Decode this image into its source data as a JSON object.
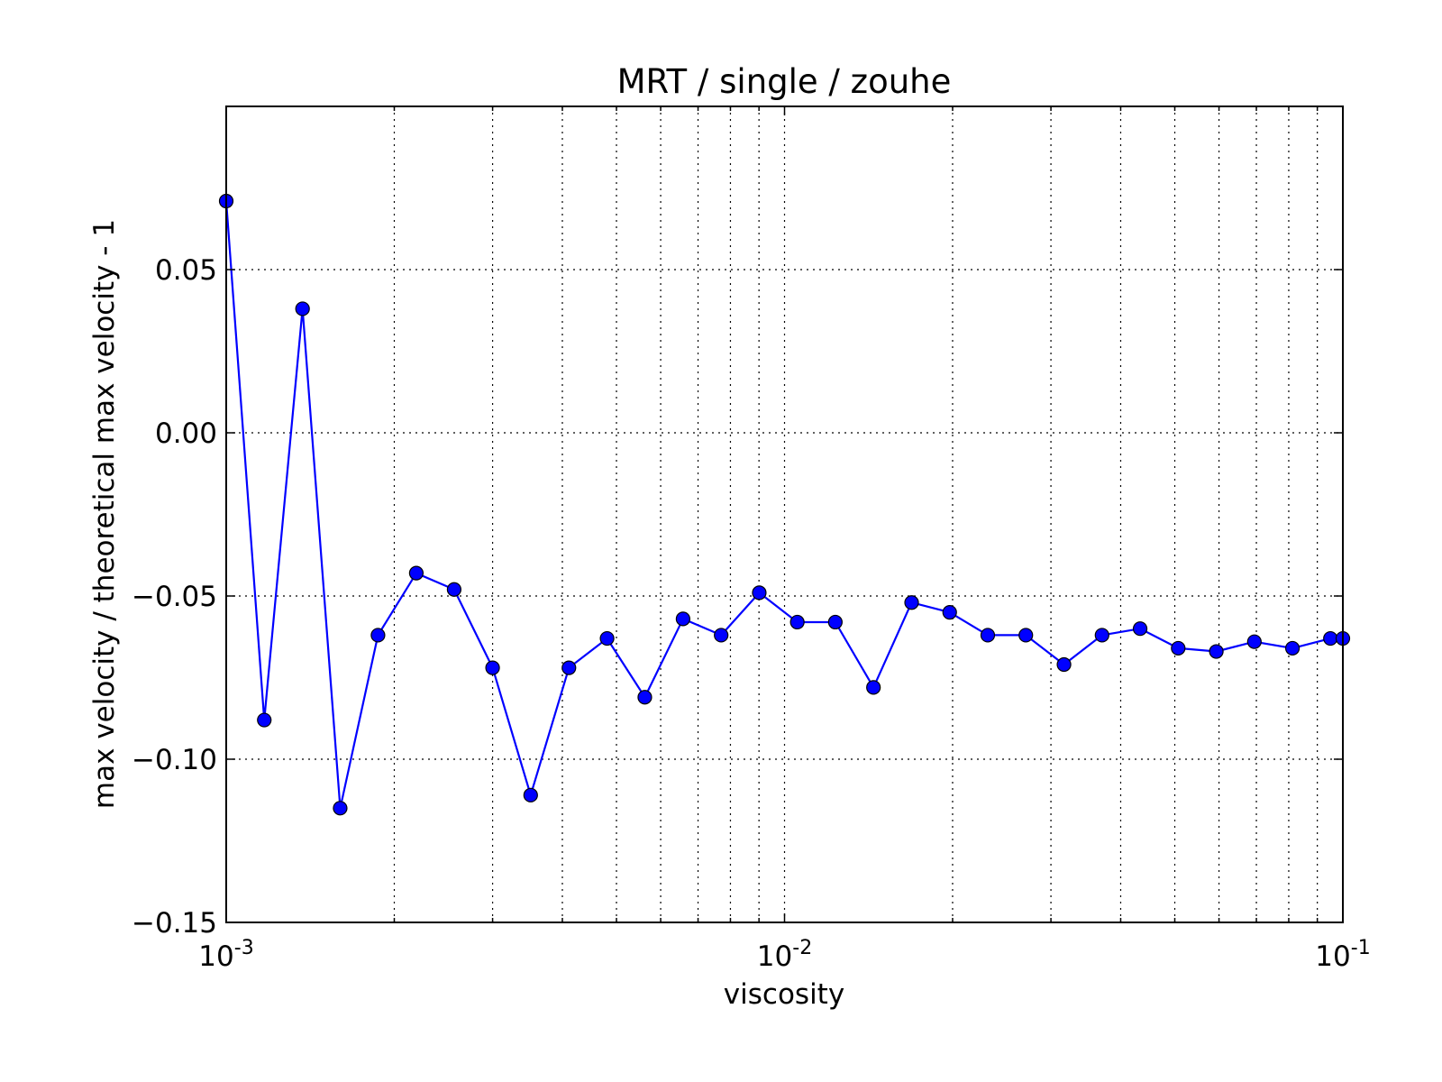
{
  "colors": {
    "line": "#0000ff",
    "marker": "#0000ff",
    "marker_edge": "#000000",
    "axes": "#000000",
    "grid": "#000000",
    "background": "#ffffff"
  },
  "chart_data": {
    "type": "line",
    "title": "MRT / single / zouhe",
    "xlabel": "viscosity",
    "ylabel": "max velocity / theoretical max velocity - 1",
    "x_scale": "log",
    "xlim": [
      0.001,
      0.1
    ],
    "ylim": [
      -0.15,
      0.1
    ],
    "grid": true,
    "grid_style": "dotted",
    "legend": "none",
    "xticks": [
      {
        "value": 0.001,
        "base": "10",
        "exp": "-3"
      },
      {
        "value": 0.01,
        "base": "10",
        "exp": "-2"
      },
      {
        "value": 0.1,
        "base": "10",
        "exp": "-1"
      }
    ],
    "yticks": [
      {
        "value": -0.15,
        "label": "−0.15"
      },
      {
        "value": -0.1,
        "label": "−0.10"
      },
      {
        "value": -0.05,
        "label": "−0.05"
      },
      {
        "value": 0.0,
        "label": "0.00"
      },
      {
        "value": 0.05,
        "label": "0.05"
      }
    ],
    "series": [
      {
        "x": [
          0.001,
          0.00117,
          0.00137,
          0.0016,
          0.00187,
          0.00219,
          0.00256,
          0.003,
          0.00351,
          0.00411,
          0.00481,
          0.00562,
          0.00658,
          0.0077,
          0.00901,
          0.01054,
          0.01233,
          0.01443,
          0.01689,
          0.01976,
          0.02312,
          0.02705,
          0.03166,
          0.03704,
          0.04334,
          0.05071,
          0.05934,
          0.06943,
          0.08123,
          0.095,
          0.1
        ],
        "y": [
          0.071,
          -0.088,
          0.038,
          -0.115,
          -0.062,
          -0.043,
          -0.048,
          -0.072,
          -0.111,
          -0.072,
          -0.063,
          -0.081,
          -0.057,
          -0.062,
          -0.049,
          -0.058,
          -0.058,
          -0.078,
          -0.052,
          -0.055,
          -0.062,
          -0.062,
          -0.071,
          -0.062,
          -0.06,
          -0.066,
          -0.067,
          -0.064,
          -0.066,
          -0.063,
          -0.063
        ]
      }
    ]
  }
}
